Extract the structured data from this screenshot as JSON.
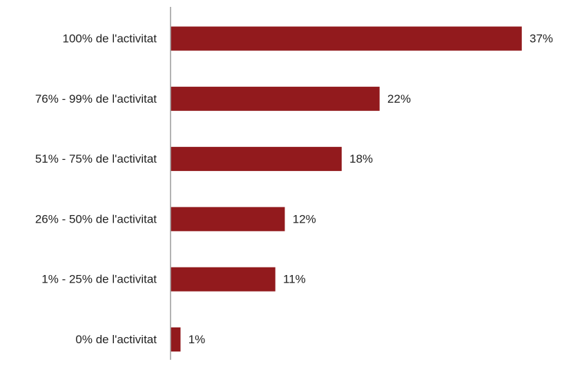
{
  "chart_data": {
    "type": "bar",
    "orientation": "horizontal",
    "categories": [
      "100% de l'activitat",
      "76% - 99% de l'activitat",
      "51% - 75% de l'activitat",
      "26% - 50% de l'activitat",
      "1% - 25% de l'activitat",
      "0% de l'activitat"
    ],
    "values": [
      37,
      22,
      18,
      12,
      11,
      1
    ],
    "value_labels": [
      "37%",
      "22%",
      "18%",
      "12%",
      "11%",
      "1%"
    ],
    "bar_color": "#921a1d",
    "axis_color": "#9a9a9a",
    "grid": false,
    "legend": "none"
  }
}
